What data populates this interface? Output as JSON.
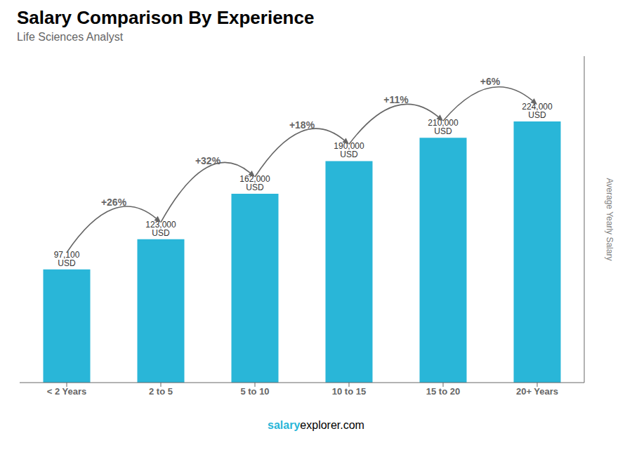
{
  "chart_data": {
    "type": "bar",
    "title": "Salary Comparison By Experience",
    "subtitle": "Life Sciences Analyst",
    "ylabel": "Average Yearly Salary",
    "categories": [
      "< 2 Years",
      "2 to 5",
      "5 to 10",
      "10 to 15",
      "15 to 20",
      "20+ Years"
    ],
    "values": [
      97100,
      123000,
      162000,
      190000,
      210000,
      224000
    ],
    "value_labels": [
      "97,100 USD",
      "123,000 USD",
      "162,000 USD",
      "190,000 USD",
      "210,000 USD",
      "224,000 USD"
    ],
    "data_labels": true,
    "annotations": [
      "+26%",
      "+32%",
      "+18%",
      "+11%",
      "+6%"
    ],
    "footer": [
      "salary",
      "explorer.com"
    ],
    "color": "#29b6d8",
    "ylim": [
      0,
      280000
    ],
    "tick_labels": "x"
  }
}
